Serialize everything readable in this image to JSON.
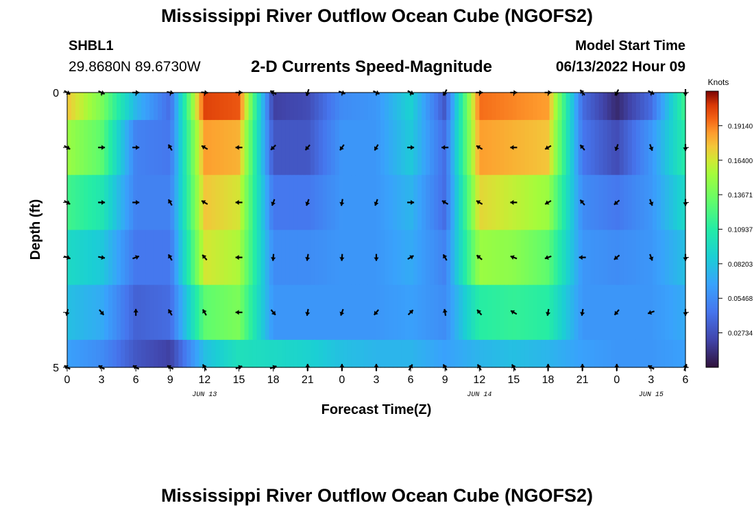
{
  "header": {
    "title": "Mississippi River Outflow Ocean Cube (NGOFS2)",
    "station_id": "SHBL1",
    "coordinates": "29.8680N  89.6730W",
    "subtitle": "2-D Currents Speed-Magnitude",
    "model_start_label": "Model Start Time",
    "model_start_value": "06/13/2022 Hour 09"
  },
  "footer": {
    "title": "Mississippi River Outflow Ocean Cube (NGOFS2)"
  },
  "chart_data": {
    "type": "heatmap",
    "xlabel": "Forecast Time(Z)",
    "ylabel": "Depth (ft)",
    "x_ticks": [
      "0",
      "3",
      "6",
      "9",
      "12",
      "15",
      "18",
      "21",
      "0",
      "3",
      "6",
      "9",
      "12",
      "15",
      "18",
      "21",
      "0",
      "3",
      "6"
    ],
    "x_range_hours": [
      0,
      54
    ],
    "date_labels": [
      {
        "text": "JUN 13",
        "at_hour": 12
      },
      {
        "text": "JUN 14",
        "at_hour": 36
      },
      {
        "text": "JUN 15",
        "at_hour": 51
      }
    ],
    "y_ticks": [
      "0",
      "5"
    ],
    "ylim": [
      0,
      5
    ],
    "colorbar": {
      "unit": "Knots",
      "ticks": [
        "0.19140",
        "0.16400",
        "0.13671",
        "0.10937",
        "0.08203",
        "0.05468",
        "0.02734"
      ],
      "range": [
        0,
        0.2187
      ]
    },
    "depth_layers_ft": [
      0.25,
      1.25,
      2.25,
      3.25,
      4.25,
      4.75
    ],
    "time_hours": [
      0,
      3,
      6,
      9,
      12,
      15,
      18,
      21,
      24,
      27,
      30,
      33,
      36,
      39,
      42,
      45,
      48,
      51,
      54
    ],
    "speed_knots": [
      [
        0.175,
        0.14,
        0.075,
        0.04,
        0.205,
        0.2,
        0.02,
        0.025,
        0.055,
        0.06,
        0.09,
        0.03,
        0.195,
        0.19,
        0.185,
        0.04,
        0.01,
        0.04,
        0.12
      ],
      [
        0.15,
        0.13,
        0.05,
        0.045,
        0.185,
        0.18,
        0.03,
        0.03,
        0.06,
        0.06,
        0.085,
        0.04,
        0.185,
        0.18,
        0.175,
        0.045,
        0.025,
        0.06,
        0.11
      ],
      [
        0.12,
        0.105,
        0.05,
        0.05,
        0.175,
        0.165,
        0.045,
        0.045,
        0.06,
        0.06,
        0.075,
        0.04,
        0.17,
        0.16,
        0.15,
        0.055,
        0.045,
        0.06,
        0.095
      ],
      [
        0.095,
        0.085,
        0.045,
        0.045,
        0.165,
        0.155,
        0.055,
        0.055,
        0.06,
        0.06,
        0.07,
        0.05,
        0.15,
        0.145,
        0.13,
        0.06,
        0.055,
        0.06,
        0.08
      ],
      [
        0.08,
        0.07,
        0.035,
        0.04,
        0.13,
        0.14,
        0.06,
        0.06,
        0.06,
        0.06,
        0.065,
        0.055,
        0.11,
        0.115,
        0.11,
        0.06,
        0.06,
        0.06,
        0.07
      ],
      [
        0.065,
        0.055,
        0.03,
        0.02,
        0.08,
        0.1,
        0.095,
        0.09,
        0.08,
        0.075,
        0.075,
        0.065,
        0.075,
        0.08,
        0.075,
        0.065,
        0.06,
        0.06,
        0.065
      ]
    ],
    "vectors": {
      "rows_depth_ft": [
        0,
        1,
        2,
        3,
        4,
        5
      ],
      "cols_hours": [
        0,
        3,
        6,
        9,
        12,
        15,
        18,
        21,
        24,
        27,
        30,
        33,
        36,
        39,
        42,
        45,
        48,
        51,
        54
      ],
      "angles_deg_from_north": [
        [
          120,
          115,
          90,
          100,
          95,
          90,
          300,
          200,
          110,
          115,
          120,
          210,
          90,
          90,
          90,
          320,
          210,
          120,
          180
        ],
        [
          120,
          90,
          90,
          330,
          300,
          270,
          225,
          220,
          215,
          210,
          90,
          270,
          300,
          270,
          240,
          320,
          200,
          160,
          180
        ],
        [
          120,
          90,
          90,
          330,
          300,
          270,
          200,
          200,
          190,
          200,
          90,
          300,
          300,
          270,
          240,
          320,
          230,
          160,
          180
        ],
        [
          110,
          100,
          70,
          330,
          320,
          270,
          185,
          190,
          185,
          180,
          60,
          330,
          310,
          290,
          250,
          270,
          230,
          160,
          180
        ],
        [
          190,
          140,
          0,
          330,
          330,
          270,
          140,
          190,
          200,
          220,
          45,
          350,
          320,
          300,
          190,
          190,
          220,
          250,
          180
        ],
        [
          300,
          300,
          300,
          300,
          330,
          70,
          70,
          0,
          0,
          0,
          30,
          330,
          330,
          330,
          0,
          0,
          0,
          300,
          20
        ]
      ]
    }
  }
}
